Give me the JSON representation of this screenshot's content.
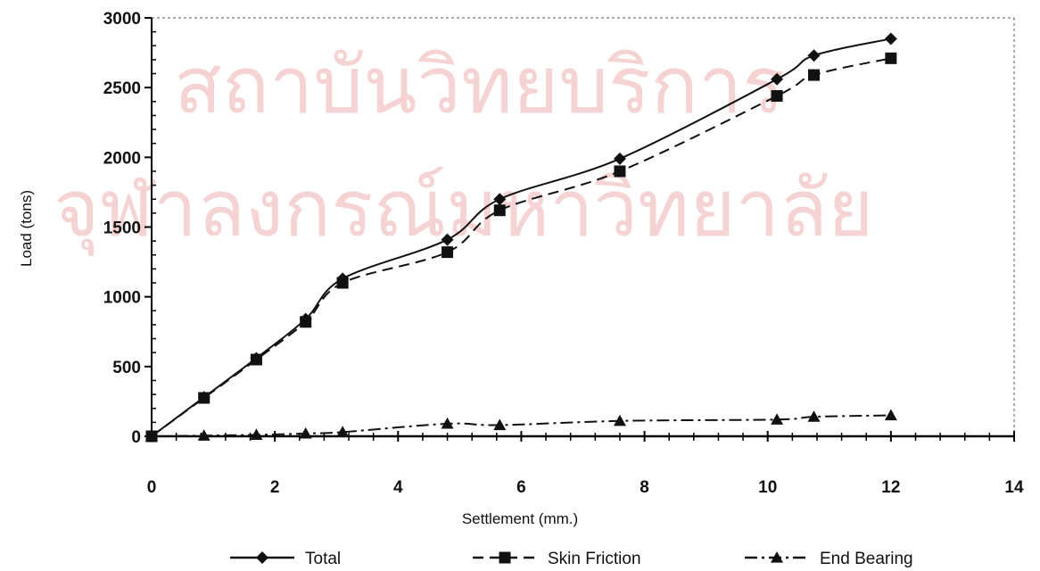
{
  "watermark": {
    "line1": "สถาบันวิทยบริการ",
    "line2": "จุฬาลงกรณ์มหาวิทยาลัย",
    "color": "#f6d3d3"
  },
  "chart_data": {
    "type": "line",
    "title": "",
    "xlabel": "Settlement (mm.)",
    "ylabel": "Load (tons)",
    "xlim": [
      0,
      14
    ],
    "ylim": [
      0,
      3000
    ],
    "xticks": [
      0,
      2,
      4,
      6,
      8,
      10,
      12,
      14
    ],
    "yticks": [
      0,
      500,
      1000,
      1500,
      2000,
      2500,
      3000
    ],
    "grid": false,
    "legend_position": "bottom",
    "series": [
      {
        "name": "Total",
        "line_style": "solid",
        "marker": "diamond",
        "color": "#111111",
        "x": [
          0,
          0.85,
          1.7,
          2.5,
          3.1,
          4.8,
          5.65,
          7.6,
          10.15,
          10.75,
          12.0
        ],
        "y": [
          0,
          280,
          560,
          840,
          1130,
          1410,
          1700,
          1990,
          2560,
          2730,
          2850
        ]
      },
      {
        "name": "Skin Friction",
        "line_style": "dashed",
        "marker": "square",
        "color": "#111111",
        "x": [
          0,
          0.85,
          1.7,
          2.5,
          3.1,
          4.8,
          5.65,
          7.6,
          10.15,
          10.75,
          12.0
        ],
        "y": [
          0,
          275,
          550,
          820,
          1100,
          1320,
          1620,
          1900,
          2440,
          2590,
          2710
        ]
      },
      {
        "name": "End Bearing",
        "line_style": "dash-dot",
        "marker": "triangle",
        "color": "#111111",
        "x": [
          0,
          0.85,
          1.7,
          2.5,
          3.1,
          4.8,
          5.65,
          7.6,
          10.15,
          10.75,
          12.0
        ],
        "y": [
          0,
          5,
          10,
          20,
          30,
          90,
          80,
          110,
          120,
          140,
          150
        ]
      }
    ]
  }
}
